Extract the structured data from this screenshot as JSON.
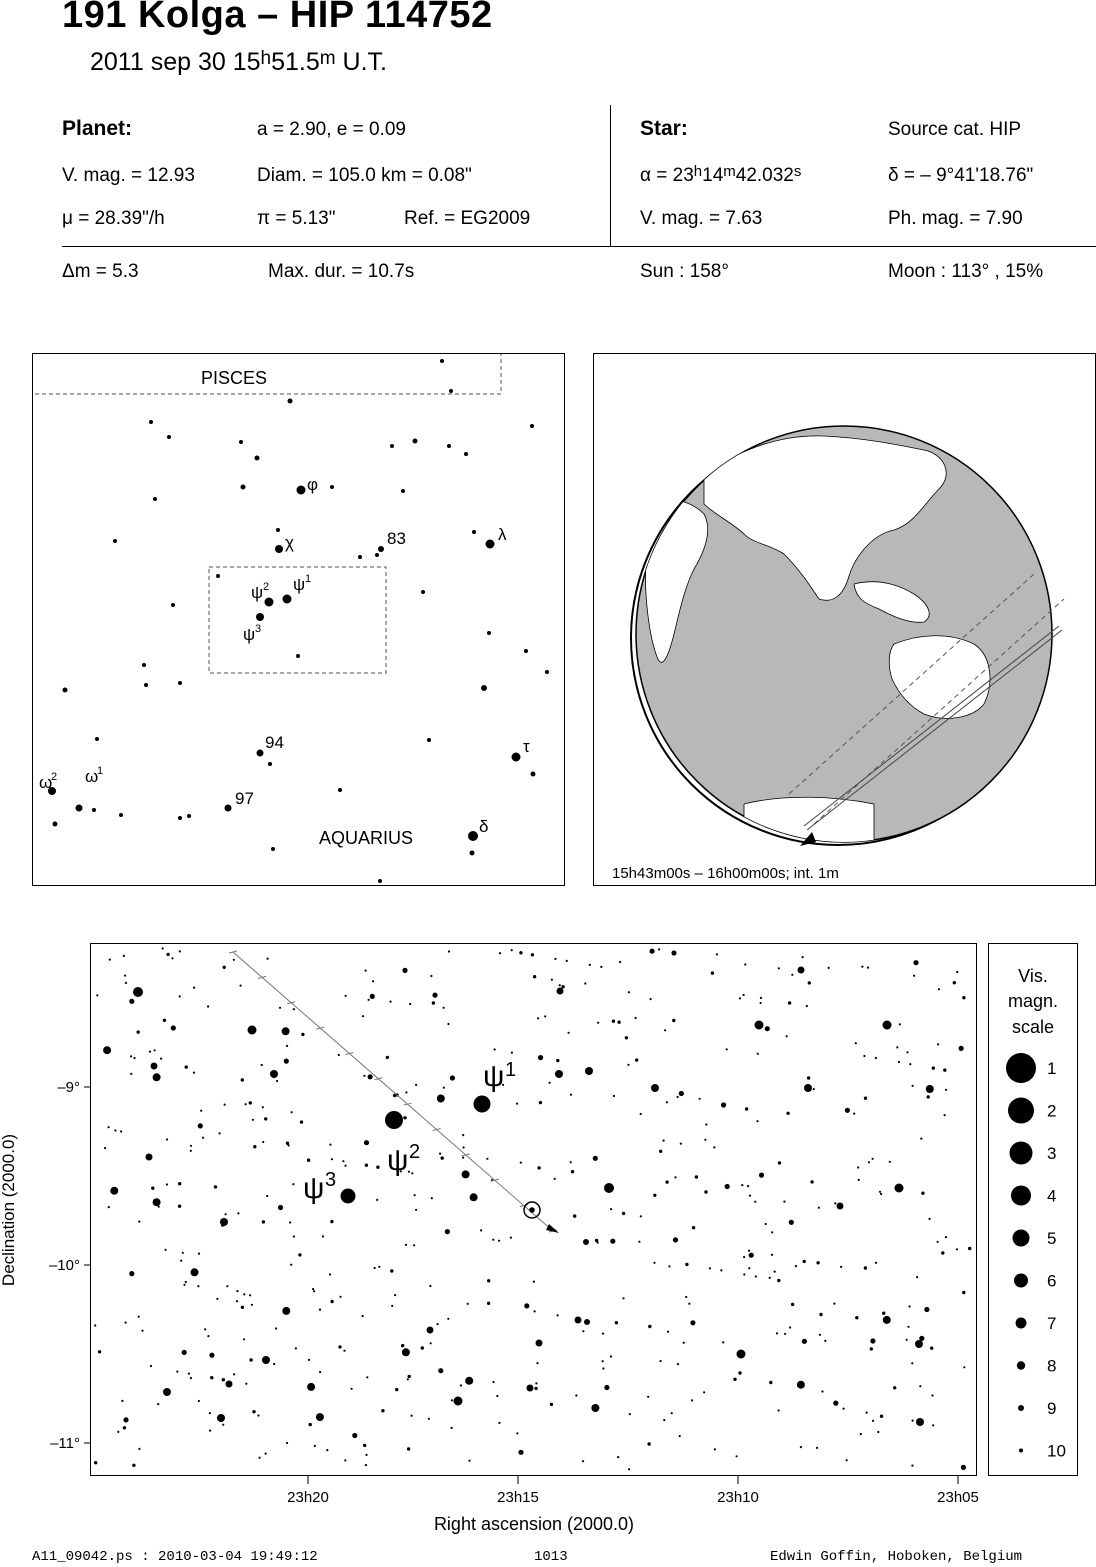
{
  "header": {
    "title": "191 Kolga  –  HIP 114752",
    "date": "2011 sep 30  15",
    "time_h": "h",
    "time_m_val": "51.5",
    "time_m": "m",
    "time_ut": " U.T."
  },
  "planet": {
    "label": "Planet:",
    "orbit": "a = 2.90, e = 0.09",
    "vmag": "V. mag. = 12.93",
    "diam": "Diam. = 105.0 km = 0.08\"",
    "mu": "μ =  28.39\"/h",
    "pi": "π =  5.13\"",
    "ref": "Ref. = EG2009"
  },
  "star": {
    "label": "Star:",
    "source": "Source cat.  HIP",
    "ra_prefix": "α = 23",
    "ra_h": "h",
    "ra_mid": "14",
    "ra_m": "m",
    "ra_sec": "42.032",
    "ra_s": "s",
    "dec": "δ = – 9°41'18.76\"",
    "vmag": "V. mag. =  7.63",
    "phmag": "Ph. mag. =  7.90"
  },
  "event": {
    "dmag": "Δm = 5.3",
    "maxdur": "Max. dur. = 10.7s",
    "sun": "Sun : 158°",
    "moon": "Moon : 113° , 15%"
  },
  "finder": {
    "constellation_top": "PISCES",
    "constellation_bottom": "AQUARIUS",
    "labels": [
      "φ",
      "χ",
      "83",
      "λ",
      "ψ",
      "2",
      "ψ",
      "1",
      "ψ",
      "3",
      "94",
      "τ",
      "ω",
      "2",
      "ω",
      "1",
      "97",
      "δ"
    ]
  },
  "globe": {
    "caption": "15h43m00s – 16h00m00s; int.  1m"
  },
  "detail": {
    "y_ticks": [
      "–9°",
      "–10°",
      "–11°"
    ],
    "x_ticks": [
      "23h20",
      "23h15",
      "23h10",
      "23h05"
    ],
    "y_label": "Declination (2000.0)",
    "x_label": "Right ascension (2000.0)",
    "psi": "ψ",
    "psi_labels": [
      "1",
      "2",
      "3"
    ]
  },
  "chart_data": {
    "type": "scatter",
    "xlabel": "Right ascension (2000.0)",
    "ylabel": "Declination (2000.0)",
    "x_ticks": [
      "23h20",
      "23h15",
      "23h10",
      "23h05"
    ],
    "y_ticks": [
      "–9°",
      "–10°",
      "–11°"
    ],
    "x_range_minutes_ra": [
      22.2,
      4.6
    ],
    "y_range_deg": [
      -8.22,
      -11.2
    ],
    "named_stars": [
      {
        "name": "ψ 1",
        "ra_min": 15.88,
        "dec": -9.09
      },
      {
        "name": "ψ 2",
        "ra_min": 17.6,
        "dec": -9.18
      },
      {
        "name": "ψ 3",
        "ra_min": 18.95,
        "dec": -9.61
      },
      {
        "name": "HIP 114752",
        "ra_min": 14.71,
        "dec": -9.69
      }
    ]
  },
  "legend": {
    "title_1": "Vis.",
    "title_2": "magn.",
    "title_3": "scale",
    "items": [
      "1",
      "2",
      "3",
      "4",
      "5",
      "6",
      "7",
      "8",
      "9",
      "10"
    ]
  },
  "footer": {
    "left": "A11_09042.ps : 2010-03-04 19:49:12",
    "center": "1013",
    "right": "Edwin Goffin, Hoboken, Belgium"
  }
}
